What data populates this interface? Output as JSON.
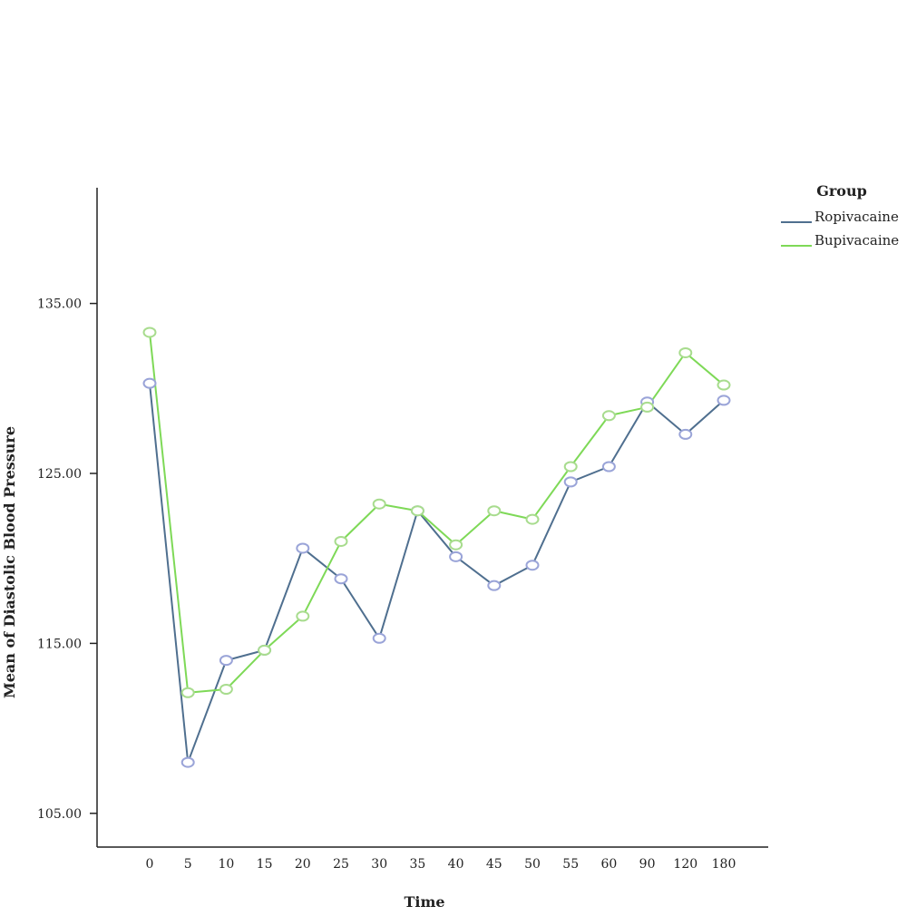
{
  "chart_data": {
    "type": "line",
    "title": "",
    "xlabel": "Time",
    "ylabel": "Mean of Diastolic Blood Pressure",
    "categories": [
      "0",
      "5",
      "10",
      "15",
      "20",
      "25",
      "30",
      "35",
      "40",
      "45",
      "50",
      "55",
      "60",
      "90",
      "120",
      "180"
    ],
    "yticks": [
      "105.00",
      "115.00",
      "125.00",
      "135.00"
    ],
    "ylim": [
      104.2,
      146.0
    ],
    "grid": false,
    "legend": {
      "title": "Group",
      "placement": "top-right"
    },
    "series": [
      {
        "name": "Ropivacaine",
        "color": "#4f6f8f",
        "marker_color": "#9aa4d8",
        "values": [
          130.3,
          108.0,
          114.0,
          114.6,
          120.6,
          118.8,
          115.3,
          122.8,
          120.1,
          118.4,
          119.6,
          124.5,
          125.4,
          129.2,
          127.3,
          129.3
        ]
      },
      {
        "name": "Bupivacaine",
        "color": "#7ed957",
        "marker_color": "#a8dc8e",
        "values": [
          133.3,
          112.1,
          112.3,
          114.6,
          116.6,
          121.0,
          123.2,
          122.8,
          120.8,
          122.8,
          122.3,
          125.4,
          128.4,
          128.9,
          132.1,
          130.2
        ]
      }
    ]
  }
}
